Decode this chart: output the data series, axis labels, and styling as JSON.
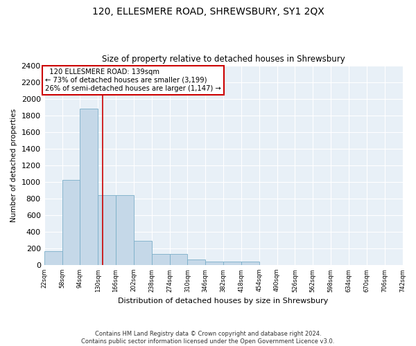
{
  "title": "120, ELLESMERE ROAD, SHREWSBURY, SY1 2QX",
  "subtitle": "Size of property relative to detached houses in Shrewsbury",
  "xlabel": "Distribution of detached houses by size in Shrewsbury",
  "ylabel": "Number of detached properties",
  "bar_color": "#C5D8E8",
  "bar_edge_color": "#7AAEC8",
  "background_color": "#E8F0F7",
  "grid_color": "#FFFFFF",
  "annotation_line_color": "#CC0000",
  "annotation_box_color": "#CC0000",
  "footer": "Contains HM Land Registry data © Crown copyright and database right 2024.\nContains public sector information licensed under the Open Government Licence v3.0.",
  "bins": [
    22,
    58,
    94,
    130,
    166,
    202,
    238,
    274,
    310,
    346,
    382,
    418,
    454,
    490,
    526,
    562,
    598,
    634,
    670,
    706,
    742
  ],
  "bin_labels": [
    "22sqm",
    "58sqm",
    "94sqm",
    "130sqm",
    "166sqm",
    "202sqm",
    "238sqm",
    "274sqm",
    "310sqm",
    "346sqm",
    "382sqm",
    "418sqm",
    "454sqm",
    "490sqm",
    "526sqm",
    "562sqm",
    "598sqm",
    "634sqm",
    "670sqm",
    "706sqm",
    "742sqm"
  ],
  "bar_heights": [
    170,
    1020,
    1880,
    840,
    840,
    290,
    130,
    130,
    70,
    45,
    45,
    45,
    0,
    0,
    0,
    0,
    0,
    0,
    0,
    0
  ],
  "property_size": 139,
  "annotation_text": "  120 ELLESMERE ROAD: 139sqm\n← 73% of detached houses are smaller (3,199)\n26% of semi-detached houses are larger (1,147) →",
  "ylim": [
    0,
    2400
  ],
  "yticks": [
    0,
    200,
    400,
    600,
    800,
    1000,
    1200,
    1400,
    1600,
    1800,
    2000,
    2200,
    2400
  ]
}
